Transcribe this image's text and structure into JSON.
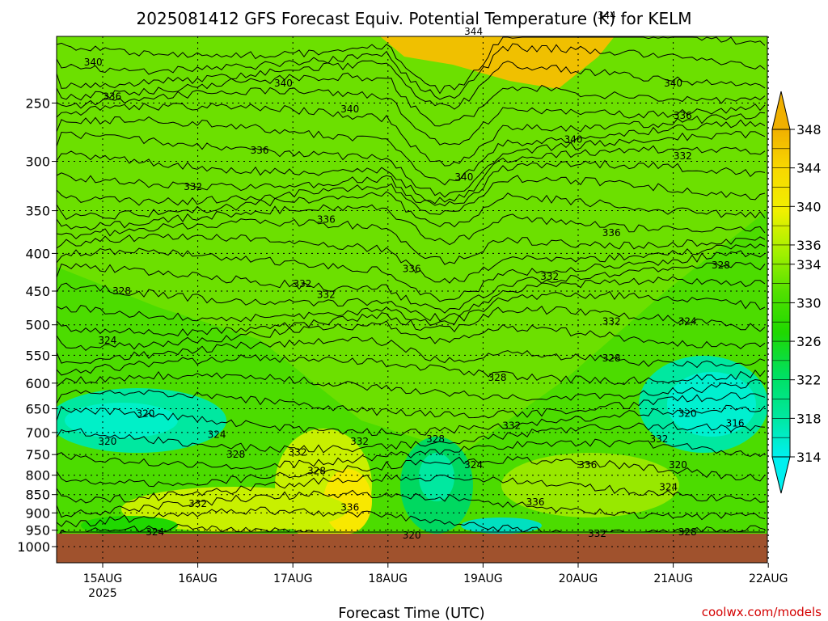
{
  "chart_data": {
    "type": "heatmap",
    "title": "2025081412 GFS Forecast Equiv. Potential Temperature (K) for KELM",
    "xlabel": "Forecast Time (UTC)",
    "ylabel": "",
    "y_levels": [
      250,
      300,
      350,
      400,
      450,
      500,
      550,
      600,
      650,
      700,
      750,
      800,
      850,
      900,
      950,
      1000
    ],
    "y_tick_labels": [
      "250",
      "300",
      "350",
      "400",
      "450",
      "500",
      "550",
      "600",
      "650",
      "700",
      "750",
      "800",
      "850",
      "900",
      "950",
      "1000"
    ],
    "x_ticks": [
      {
        "label": "15AUG",
        "sub": "2025",
        "day": 0
      },
      {
        "label": "16AUG",
        "day": 1
      },
      {
        "label": "17AUG",
        "day": 2
      },
      {
        "label": "18AUG",
        "day": 3
      },
      {
        "label": "19AUG",
        "day": 4
      },
      {
        "label": "20AUG",
        "day": 5
      },
      {
        "label": "21AUG",
        "day": 6
      },
      {
        "label": "22AUG",
        "day": 7
      }
    ],
    "colorbar": {
      "levels": [
        314,
        316,
        318,
        320,
        322,
        324,
        326,
        328,
        330,
        332,
        334,
        336,
        338,
        340,
        342,
        344,
        346,
        348
      ],
      "labels": [
        "314",
        "318",
        "322",
        "326",
        "330",
        "334",
        "336",
        "340",
        "344",
        "348"
      ],
      "low_color": "#00f0f0",
      "high_color": "#f0b000"
    },
    "contour_labels": [
      {
        "text": "344",
        "day": 3.9,
        "p": 200
      },
      {
        "text": "344",
        "day": 5.3,
        "p": 190
      },
      {
        "text": "340",
        "day": -0.1,
        "p": 220
      },
      {
        "text": "340",
        "day": 1.9,
        "p": 235
      },
      {
        "text": "340",
        "day": 2.6,
        "p": 255
      },
      {
        "text": "340",
        "day": 4.95,
        "p": 280
      },
      {
        "text": "340",
        "day": 6.0,
        "p": 235
      },
      {
        "text": "340",
        "day": 3.8,
        "p": 315
      },
      {
        "text": "336",
        "day": 0.1,
        "p": 245
      },
      {
        "text": "336",
        "day": 1.65,
        "p": 290
      },
      {
        "text": "336",
        "day": 6.1,
        "p": 260
      },
      {
        "text": "336",
        "day": 2.35,
        "p": 360
      },
      {
        "text": "336",
        "day": 3.25,
        "p": 420
      },
      {
        "text": "336",
        "day": 5.35,
        "p": 375
      },
      {
        "text": "332",
        "day": 0.95,
        "p": 325
      },
      {
        "text": "332",
        "day": 2.1,
        "p": 440
      },
      {
        "text": "332",
        "day": 2.35,
        "p": 455
      },
      {
        "text": "332",
        "day": 6.1,
        "p": 295
      },
      {
        "text": "332",
        "day": 4.7,
        "p": 430
      },
      {
        "text": "332",
        "day": 5.35,
        "p": 495
      },
      {
        "text": "328",
        "day": 0.2,
        "p": 450
      },
      {
        "text": "328",
        "day": 6.5,
        "p": 415
      },
      {
        "text": "328",
        "day": 5.35,
        "p": 555
      },
      {
        "text": "328",
        "day": 4.15,
        "p": 590
      },
      {
        "text": "324",
        "day": 0.05,
        "p": 525
      },
      {
        "text": "324",
        "day": 6.15,
        "p": 495
      },
      {
        "text": "320",
        "day": 0.45,
        "p": 660
      },
      {
        "text": "320",
        "day": 6.15,
        "p": 660
      },
      {
        "text": "316",
        "day": 6.65,
        "p": 680
      },
      {
        "text": "320",
        "day": 0.05,
        "p": 720
      },
      {
        "text": "324",
        "day": 1.2,
        "p": 705
      },
      {
        "text": "328",
        "day": 1.4,
        "p": 750
      },
      {
        "text": "332",
        "day": 2.05,
        "p": 745
      },
      {
        "text": "332",
        "day": 2.7,
        "p": 720
      },
      {
        "text": "328",
        "day": 2.25,
        "p": 790
      },
      {
        "text": "328",
        "day": 3.5,
        "p": 715
      },
      {
        "text": "324",
        "day": 3.9,
        "p": 775
      },
      {
        "text": "332",
        "day": 4.3,
        "p": 685
      },
      {
        "text": "336",
        "day": 5.1,
        "p": 775
      },
      {
        "text": "332",
        "day": 5.85,
        "p": 715
      },
      {
        "text": "320",
        "day": 6.05,
        "p": 775
      },
      {
        "text": "324",
        "day": 5.95,
        "p": 830
      },
      {
        "text": "332",
        "day": 1.0,
        "p": 875
      },
      {
        "text": "336",
        "day": 2.6,
        "p": 885
      },
      {
        "text": "336",
        "day": 4.55,
        "p": 870
      },
      {
        "text": "324",
        "day": 0.55,
        "p": 955
      },
      {
        "text": "320",
        "day": 3.25,
        "p": 965
      },
      {
        "text": "332",
        "day": 5.2,
        "p": 960
      },
      {
        "text": "328",
        "day": 6.15,
        "p": 955
      }
    ]
  },
  "credit": "coolwx.com/models"
}
